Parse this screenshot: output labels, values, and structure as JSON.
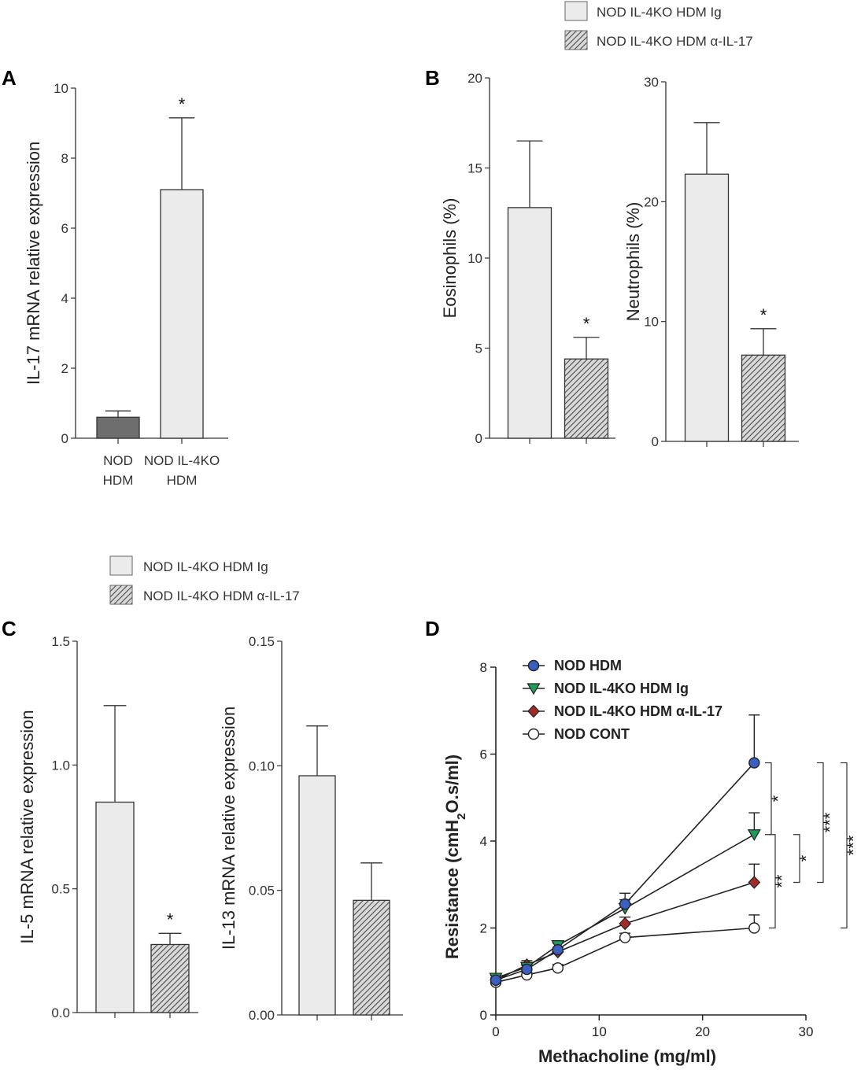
{
  "colors": {
    "light_bar": "#ebebeb",
    "dark_bar": "#6e6e6e",
    "hatch_bg": "#d9d9d9",
    "hatch_line": "#4a4a4a",
    "nod_hdm": "#3a5fbf",
    "ig": "#1e9a5a",
    "anti": "#a02b2b",
    "cont": "#ffffff"
  },
  "legend_top": {
    "ig": "NOD IL-4KO HDM Ig",
    "anti": "NOD IL-4KO HDM α-IL-17"
  },
  "legend_c": {
    "ig": "NOD IL-4KO HDM Ig",
    "anti": "NOD IL-4KO HDM α-IL-17"
  },
  "chart_data": [
    {
      "panel": "A",
      "type": "bar",
      "ylabel": "IL-17 mRNA relative expression",
      "ylim": [
        0,
        10
      ],
      "yticks": [
        "0",
        "2",
        "4",
        "6",
        "8",
        "10"
      ],
      "categories": [
        "NOD HDM",
        "NOD IL-4KO HDM"
      ],
      "category_lines": [
        [
          "NOD",
          "HDM"
        ],
        [
          "NOD IL-4KO",
          "HDM"
        ]
      ],
      "values": [
        0.6,
        7.1
      ],
      "errors": [
        0.18,
        2.05
      ],
      "significance": [
        "",
        "*"
      ]
    },
    {
      "panel": "B",
      "type": "bar",
      "ylabel": "Eosinophils (%)",
      "ylim": [
        0,
        20
      ],
      "yticks": [
        "0",
        "5",
        "10",
        "15",
        "20"
      ],
      "categories": [
        "NOD IL-4KO HDM Ig",
        "NOD IL-4KO HDM α-IL-17"
      ],
      "values": [
        12.8,
        4.4
      ],
      "errors": [
        3.7,
        1.2
      ],
      "significance": [
        "",
        "*"
      ]
    },
    {
      "panel": "B",
      "type": "bar",
      "ylabel": "Neutrophils (%)",
      "ylim": [
        0,
        30
      ],
      "yticks": [
        "0",
        "10",
        "20",
        "30"
      ],
      "categories": [
        "NOD IL-4KO HDM Ig",
        "NOD IL-4KO HDM α-IL-17"
      ],
      "values": [
        22.3,
        7.2
      ],
      "errors": [
        4.3,
        2.2
      ],
      "significance": [
        "",
        "*"
      ]
    },
    {
      "panel": "C",
      "type": "bar",
      "ylabel": "IL-5 mRNA relative expression",
      "ylim": [
        0,
        1.5
      ],
      "yticks": [
        "0.0",
        "0.5",
        "1.0",
        "1.5"
      ],
      "categories": [
        "NOD IL-4KO HDM Ig",
        "NOD IL-4KO HDM α-IL-17"
      ],
      "values": [
        0.85,
        0.275
      ],
      "errors": [
        0.39,
        0.045
      ],
      "significance": [
        "",
        "*"
      ]
    },
    {
      "panel": "C",
      "type": "bar",
      "ylabel": "IL-13 mRNA relative expression",
      "ylim": [
        0,
        0.15
      ],
      "yticks": [
        "0.00",
        "0.05",
        "0.10",
        "0.15"
      ],
      "categories": [
        "NOD IL-4KO HDM Ig",
        "NOD IL-4KO HDM α-IL-17"
      ],
      "values": [
        0.096,
        0.046
      ],
      "errors": [
        0.02,
        0.015
      ],
      "significance": [
        "",
        ""
      ]
    },
    {
      "panel": "D",
      "type": "line",
      "xlabel": "Methacholine (mg/ml)",
      "ylabel_parts": [
        "Resistance (cmH",
        "2",
        "O.s/ml)"
      ],
      "xlim": [
        0,
        30
      ],
      "ylim": [
        0,
        8
      ],
      "xticks": [
        "0",
        "10",
        "20",
        "30"
      ],
      "yticks": [
        "0",
        "2",
        "4",
        "6",
        "8"
      ],
      "x": [
        0,
        3,
        6,
        12.5,
        25
      ],
      "series": [
        {
          "name": "NOD HDM",
          "marker": "circle",
          "values": [
            0.8,
            1.05,
            1.5,
            2.55,
            5.8
          ],
          "errors": [
            0.05,
            0.1,
            0.15,
            0.25,
            1.1
          ]
        },
        {
          "name": "NOD IL-4KO HDM Ig",
          "marker": "triangle-down",
          "values": [
            0.85,
            1.1,
            1.6,
            2.45,
            4.15
          ],
          "errors": [
            0.05,
            0.1,
            0.1,
            0.2,
            0.5
          ]
        },
        {
          "name": "NOD IL-4KO HDM α-IL-17",
          "marker": "diamond",
          "values": [
            0.8,
            1.15,
            1.45,
            2.1,
            3.05
          ],
          "errors": [
            0.05,
            0.1,
            0.1,
            0.15,
            0.42
          ]
        },
        {
          "name": "NOD CONT",
          "marker": "circle-open",
          "values": [
            0.75,
            0.92,
            1.08,
            1.78,
            2.0
          ],
          "errors": [
            0.05,
            0.06,
            0.08,
            0.1,
            0.3
          ]
        }
      ],
      "brackets": [
        "*",
        "*",
        "**",
        "***",
        "***"
      ]
    }
  ],
  "panel_labels": [
    "A",
    "B",
    "C",
    "D"
  ]
}
